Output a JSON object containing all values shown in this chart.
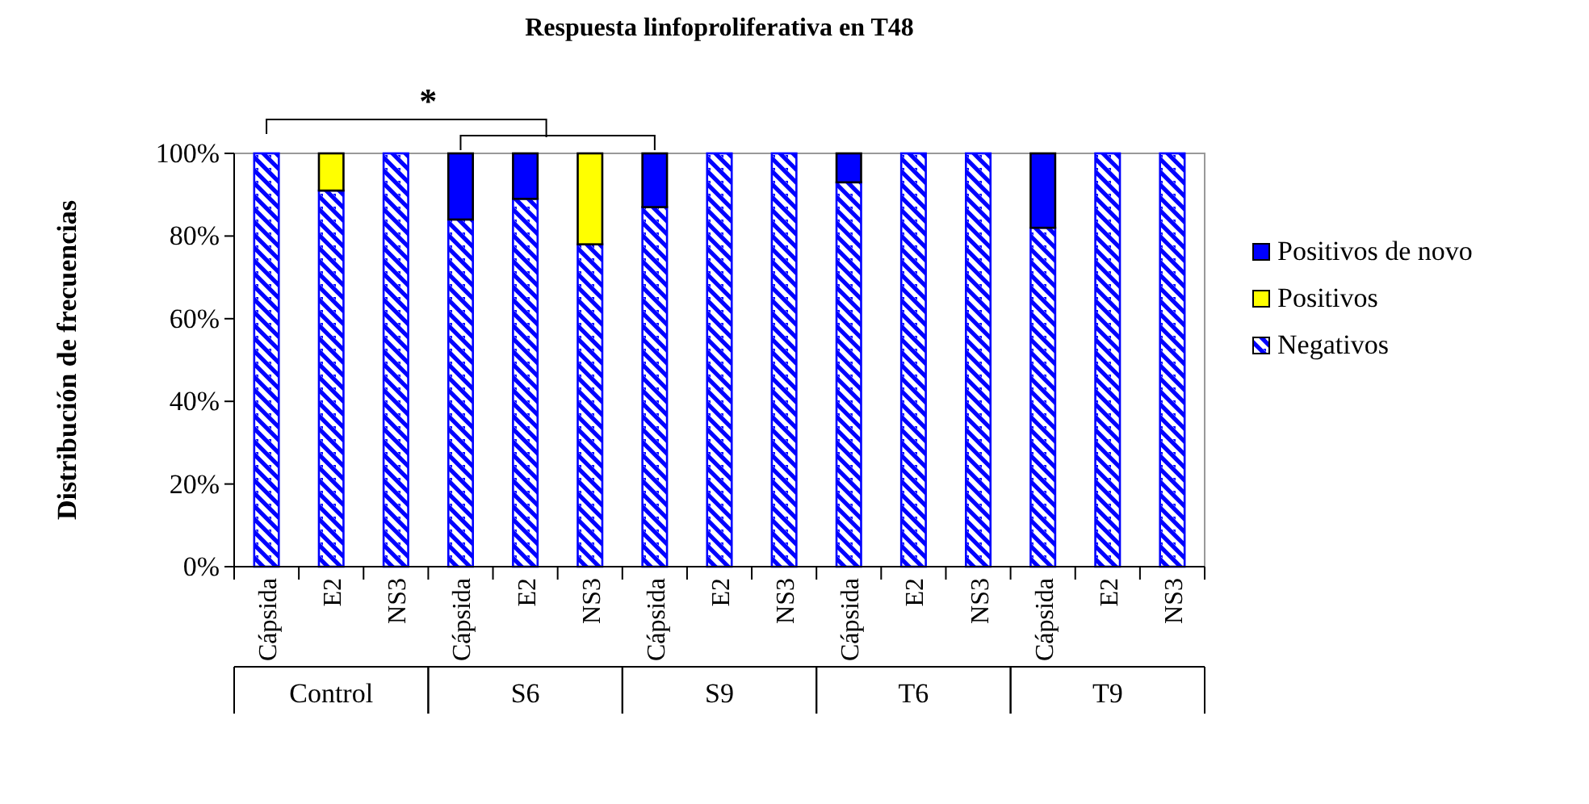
{
  "chart_data": {
    "type": "bar",
    "title": "Respuesta linfoproliferativa en T48",
    "ylabel": "Distribución de frecuencias",
    "categories": [
      "Cápsida",
      "E2",
      "NS3",
      "Cápsida",
      "E2",
      "NS3",
      "Cápsida",
      "E2",
      "NS3",
      "Cápsida",
      "E2",
      "NS3",
      "Cápsida",
      "E2",
      "NS3"
    ],
    "stacked": true,
    "series": [
      {
        "name": "Negativos",
        "color": "#0000ff",
        "values": [
          100,
          91,
          100,
          84,
          89,
          78,
          87,
          100,
          100,
          93,
          100,
          100,
          82,
          100,
          100
        ]
      },
      {
        "name": "Positivos",
        "color": "#ffff00",
        "values": [
          0,
          9,
          0,
          0,
          0,
          22,
          0,
          0,
          0,
          0,
          0,
          0,
          0,
          0,
          0
        ]
      },
      {
        "name": "Positivos de novo",
        "color": "#0000ff",
        "values": [
          0,
          0,
          0,
          16,
          11,
          0,
          13,
          0,
          0,
          7,
          0,
          0,
          18,
          0,
          0
        ]
      }
    ],
    "ylim": [
      0,
      100
    ],
    "yticks": [
      {
        "value": 0,
        "label": "0%"
      },
      {
        "value": 20,
        "label": "20%"
      },
      {
        "value": 40,
        "label": "40%"
      },
      {
        "value": 60,
        "label": "60%"
      },
      {
        "value": 80,
        "label": "80%"
      },
      {
        "value": 100,
        "label": "100%"
      }
    ],
    "annotations": [
      "*",
      "Control",
      "S6",
      "S9",
      "T6",
      "T9"
    ],
    "legend": "right",
    "grid": false
  }
}
